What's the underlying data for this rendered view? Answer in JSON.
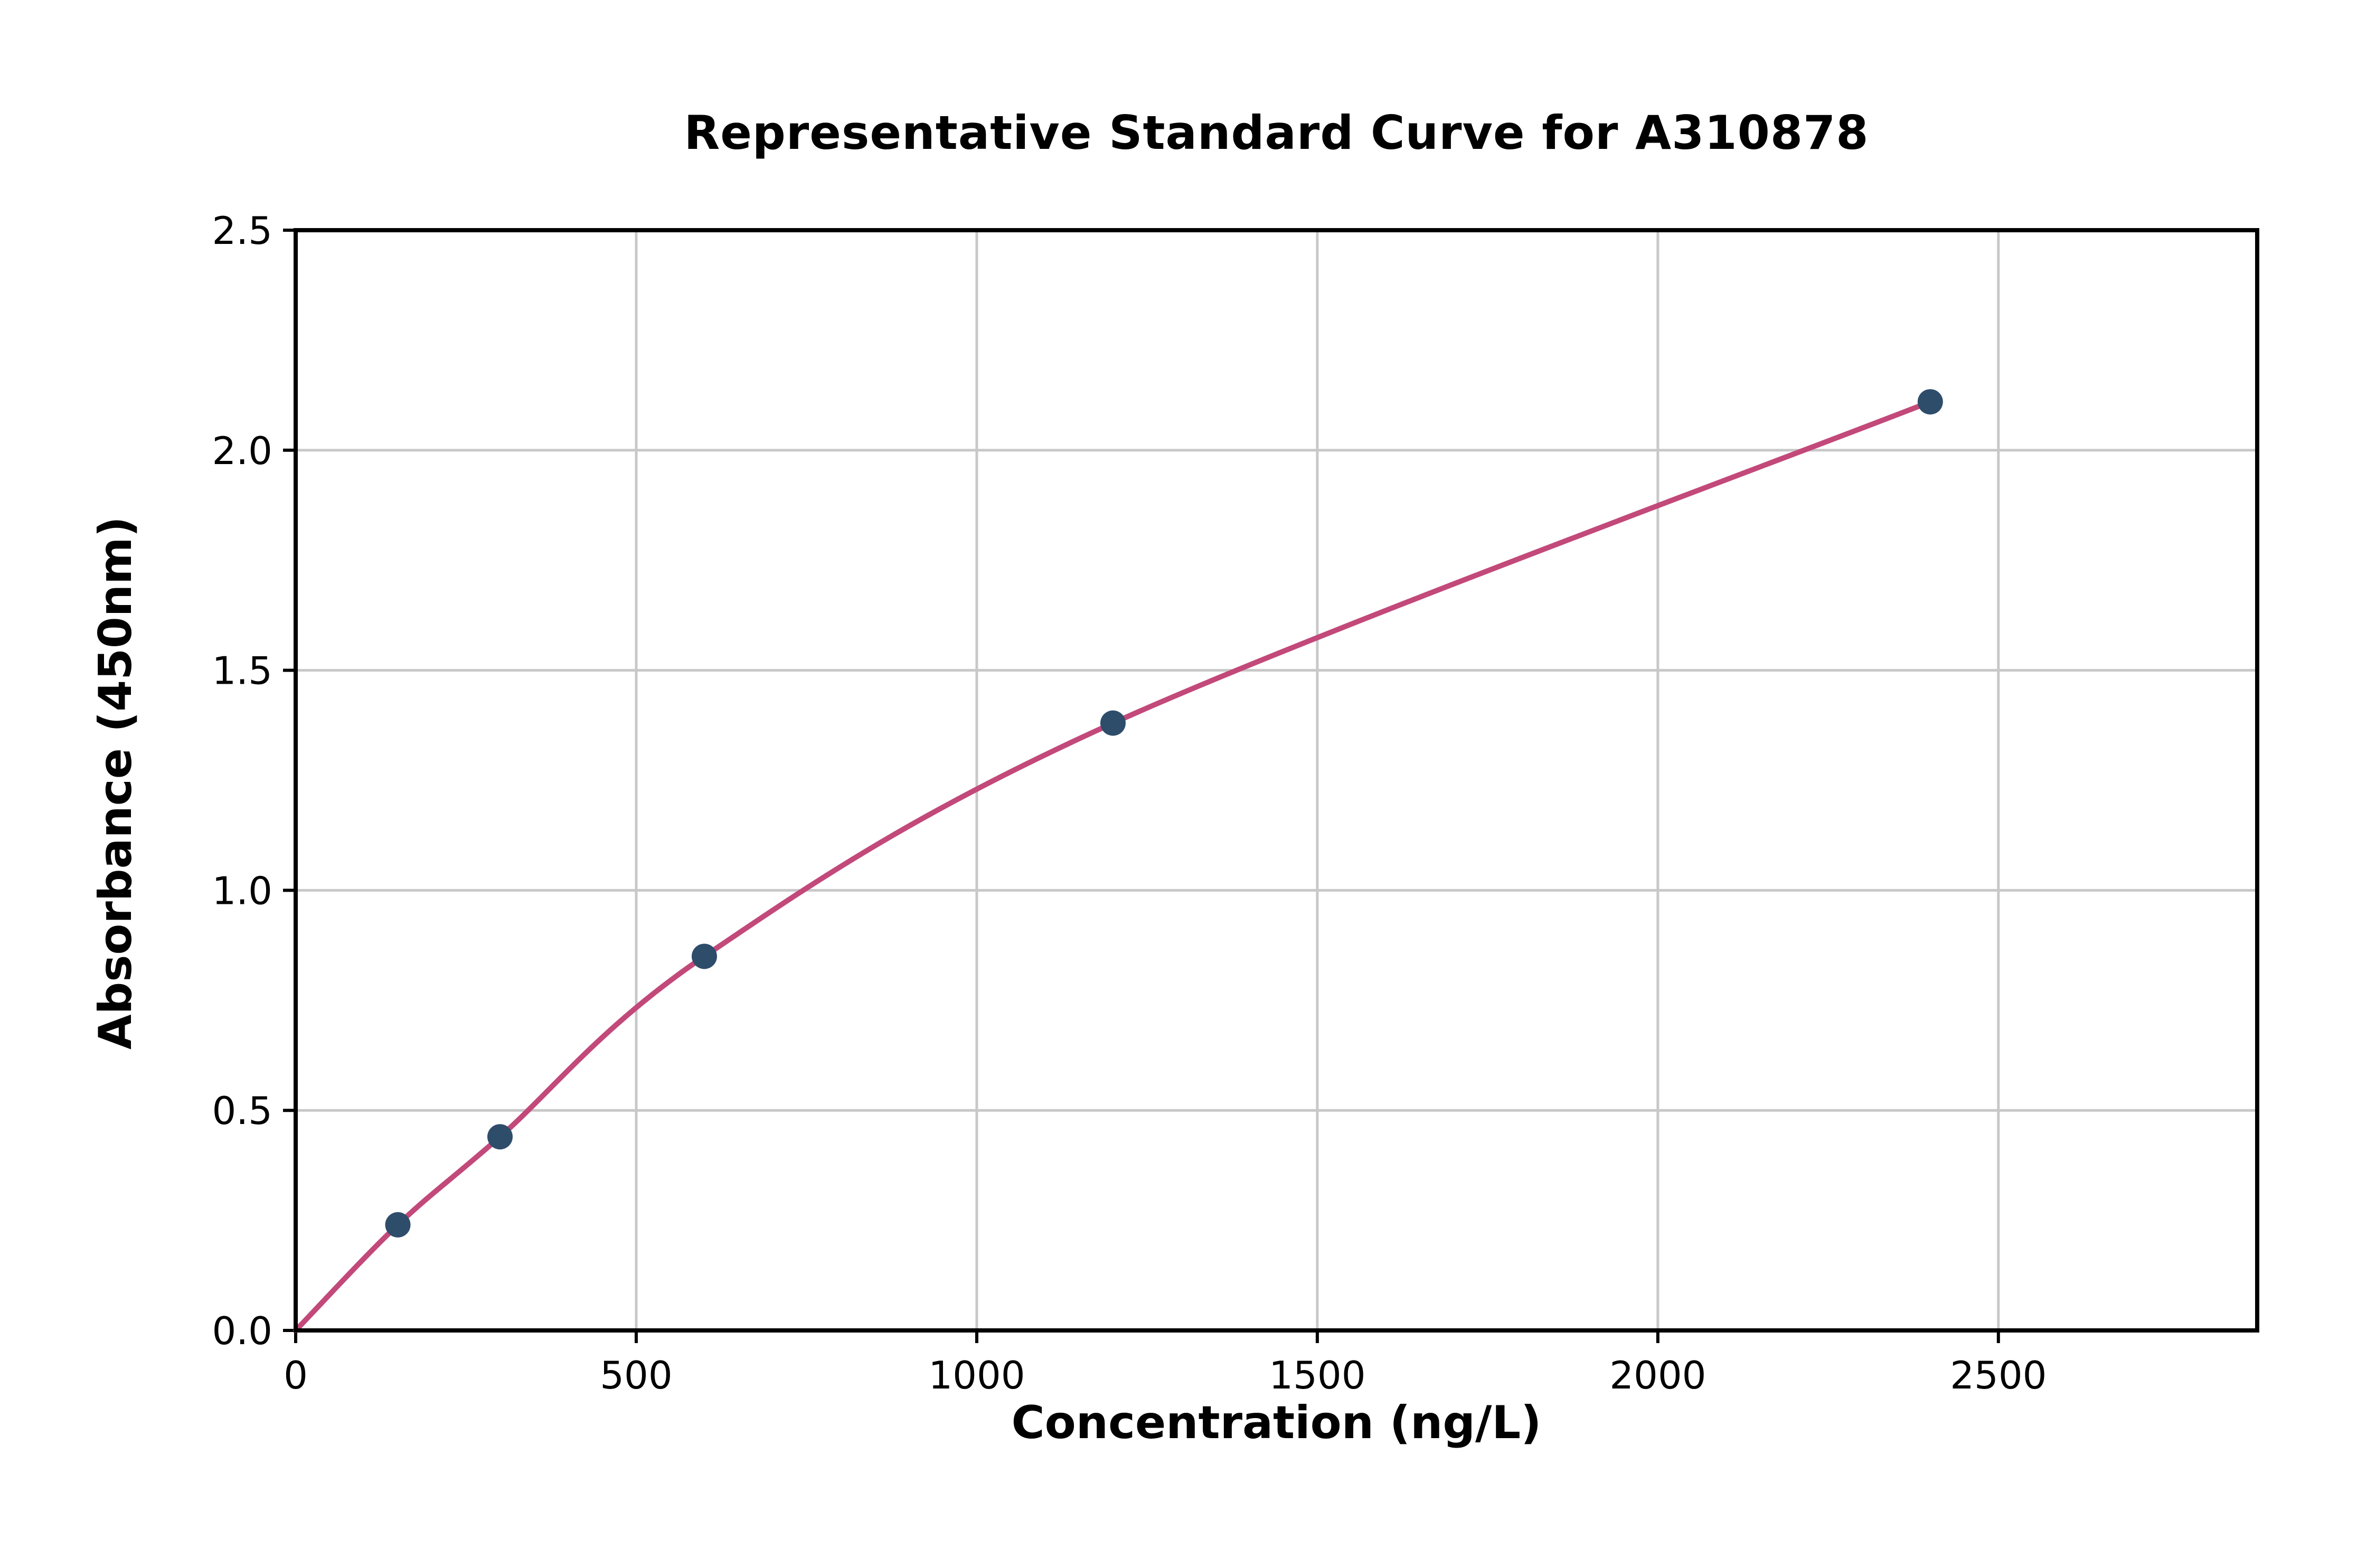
{
  "chart_data": {
    "type": "scatter",
    "title": "Representative Standard Curve for A310878",
    "xlabel": "Concentration (ng/L)",
    "ylabel": "Absorbance (450nm)",
    "xlim": [
      0,
      2880
    ],
    "ylim": [
      0,
      2.5
    ],
    "grid": true,
    "legend": "none",
    "xticks": {
      "values": [
        0,
        500,
        1000,
        1500,
        2000,
        2500
      ],
      "labels": [
        "0",
        "500",
        "1000",
        "1500",
        "2000",
        "2500"
      ]
    },
    "yticks": {
      "values": [
        0,
        0.5,
        1.0,
        1.5,
        2.0,
        2.5
      ],
      "labels": [
        "0.0",
        "0.5",
        "1.0",
        "1.5",
        "2.0",
        "2.5"
      ]
    },
    "series": [
      {
        "name": "fit-curve",
        "type": "line",
        "x": [
          0,
          150,
          300,
          600,
          1200,
          2400
        ],
        "y": [
          0.0,
          0.24,
          0.44,
          0.85,
          1.38,
          2.11
        ],
        "color": "#c2497a"
      },
      {
        "name": "standard-points",
        "type": "scatter",
        "x": [
          150,
          300,
          600,
          1200,
          2400
        ],
        "y": [
          0.24,
          0.44,
          0.85,
          1.38,
          2.11
        ],
        "color": "#2e4d6b"
      }
    ],
    "colors": {
      "background": "#ffffff",
      "spine": "#000000",
      "grid": "#c8c8c8",
      "tick_label": "#000000"
    }
  }
}
